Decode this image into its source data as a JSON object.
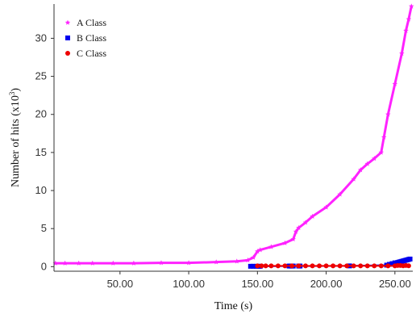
{
  "chart_data": {
    "type": "scatter",
    "xlabel": "Time (s)",
    "ylabel_main": "Number of hits (x10",
    "ylabel_sup": "3",
    "ylabel_tail": ")",
    "xlim": [
      2,
      263
    ],
    "ylim": [
      -0.6,
      34.5
    ],
    "x_ticks": [
      {
        "value": 50,
        "label": "50.00"
      },
      {
        "value": 100,
        "label": "100.00"
      },
      {
        "value": 150,
        "label": "150.00"
      },
      {
        "value": 200,
        "label": "200.00"
      },
      {
        "value": 250,
        "label": "250.00"
      }
    ],
    "y_ticks": [
      {
        "value": 0,
        "label": "0"
      },
      {
        "value": 5,
        "label": "5"
      },
      {
        "value": 10,
        "label": "10"
      },
      {
        "value": 15,
        "label": "15"
      },
      {
        "value": 20,
        "label": "20"
      },
      {
        "value": 25,
        "label": "25"
      },
      {
        "value": 30,
        "label": "30"
      }
    ],
    "grid": false,
    "legend_position": "top-left",
    "series": [
      {
        "name": "A Class",
        "color": "#ff22ff",
        "marker": "star",
        "x": [
          3,
          10,
          20,
          30,
          45,
          60,
          80,
          100,
          120,
          135,
          143,
          147,
          150,
          152,
          160,
          170,
          176,
          178,
          180,
          185,
          190,
          200,
          210,
          220,
          225,
          230,
          235,
          240,
          242,
          245,
          250,
          255,
          258,
          260,
          262
        ],
        "y": [
          0.45,
          0.45,
          0.45,
          0.45,
          0.45,
          0.45,
          0.5,
          0.5,
          0.6,
          0.7,
          0.85,
          1.2,
          2.0,
          2.2,
          2.6,
          3.1,
          3.6,
          4.6,
          5.1,
          5.8,
          6.6,
          7.8,
          9.5,
          11.5,
          12.7,
          13.5,
          14.2,
          15.0,
          17.0,
          20.0,
          24.0,
          28.0,
          31.0,
          32.5,
          34.2
        ]
      },
      {
        "name": "B Class",
        "color": "#0000ee",
        "marker": "square",
        "x": [
          145,
          147,
          149,
          151,
          152,
          173,
          174,
          175,
          176,
          180,
          181,
          217,
          244,
          246,
          248,
          250,
          252,
          253,
          254,
          255,
          256,
          257,
          258,
          259,
          260,
          261
        ],
        "y": [
          0.05,
          0.05,
          0.05,
          0.05,
          0.05,
          0.08,
          0.08,
          0.08,
          0.08,
          0.08,
          0.08,
          0.1,
          0.2,
          0.3,
          0.4,
          0.5,
          0.55,
          0.6,
          0.65,
          0.7,
          0.75,
          0.8,
          0.85,
          0.9,
          0.95,
          1.0
        ]
      },
      {
        "name": "C Class",
        "color": "#ee0000",
        "marker": "circle",
        "x": [
          150,
          153,
          156,
          160,
          165,
          170,
          175,
          180,
          185,
          190,
          195,
          200,
          205,
          210,
          215,
          220,
          225,
          230,
          235,
          240,
          245,
          250,
          252,
          254,
          256,
          258,
          260
        ],
        "y": [
          0.1,
          0.1,
          0.1,
          0.1,
          0.1,
          0.1,
          0.1,
          0.1,
          0.1,
          0.1,
          0.1,
          0.1,
          0.1,
          0.1,
          0.1,
          0.1,
          0.1,
          0.1,
          0.1,
          0.1,
          0.1,
          0.1,
          0.15,
          0.15,
          0.12,
          0.15,
          0.12
        ]
      }
    ]
  }
}
